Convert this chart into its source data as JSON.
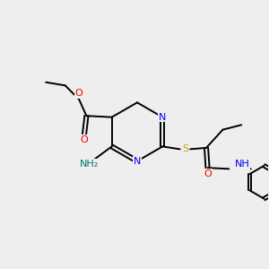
{
  "bg_color": "#eeeeee",
  "bond_color": "#000000",
  "bond_width": 1.4,
  "atom_colors": {
    "N": "#0000ee",
    "O": "#ee0000",
    "S": "#bbaa00",
    "H_teal": "#007777"
  },
  "font_size": 8.0,
  "fig_size": [
    3.0,
    3.0
  ],
  "dpi": 100,
  "xlim": [
    0,
    10
  ],
  "ylim": [
    0,
    10
  ]
}
